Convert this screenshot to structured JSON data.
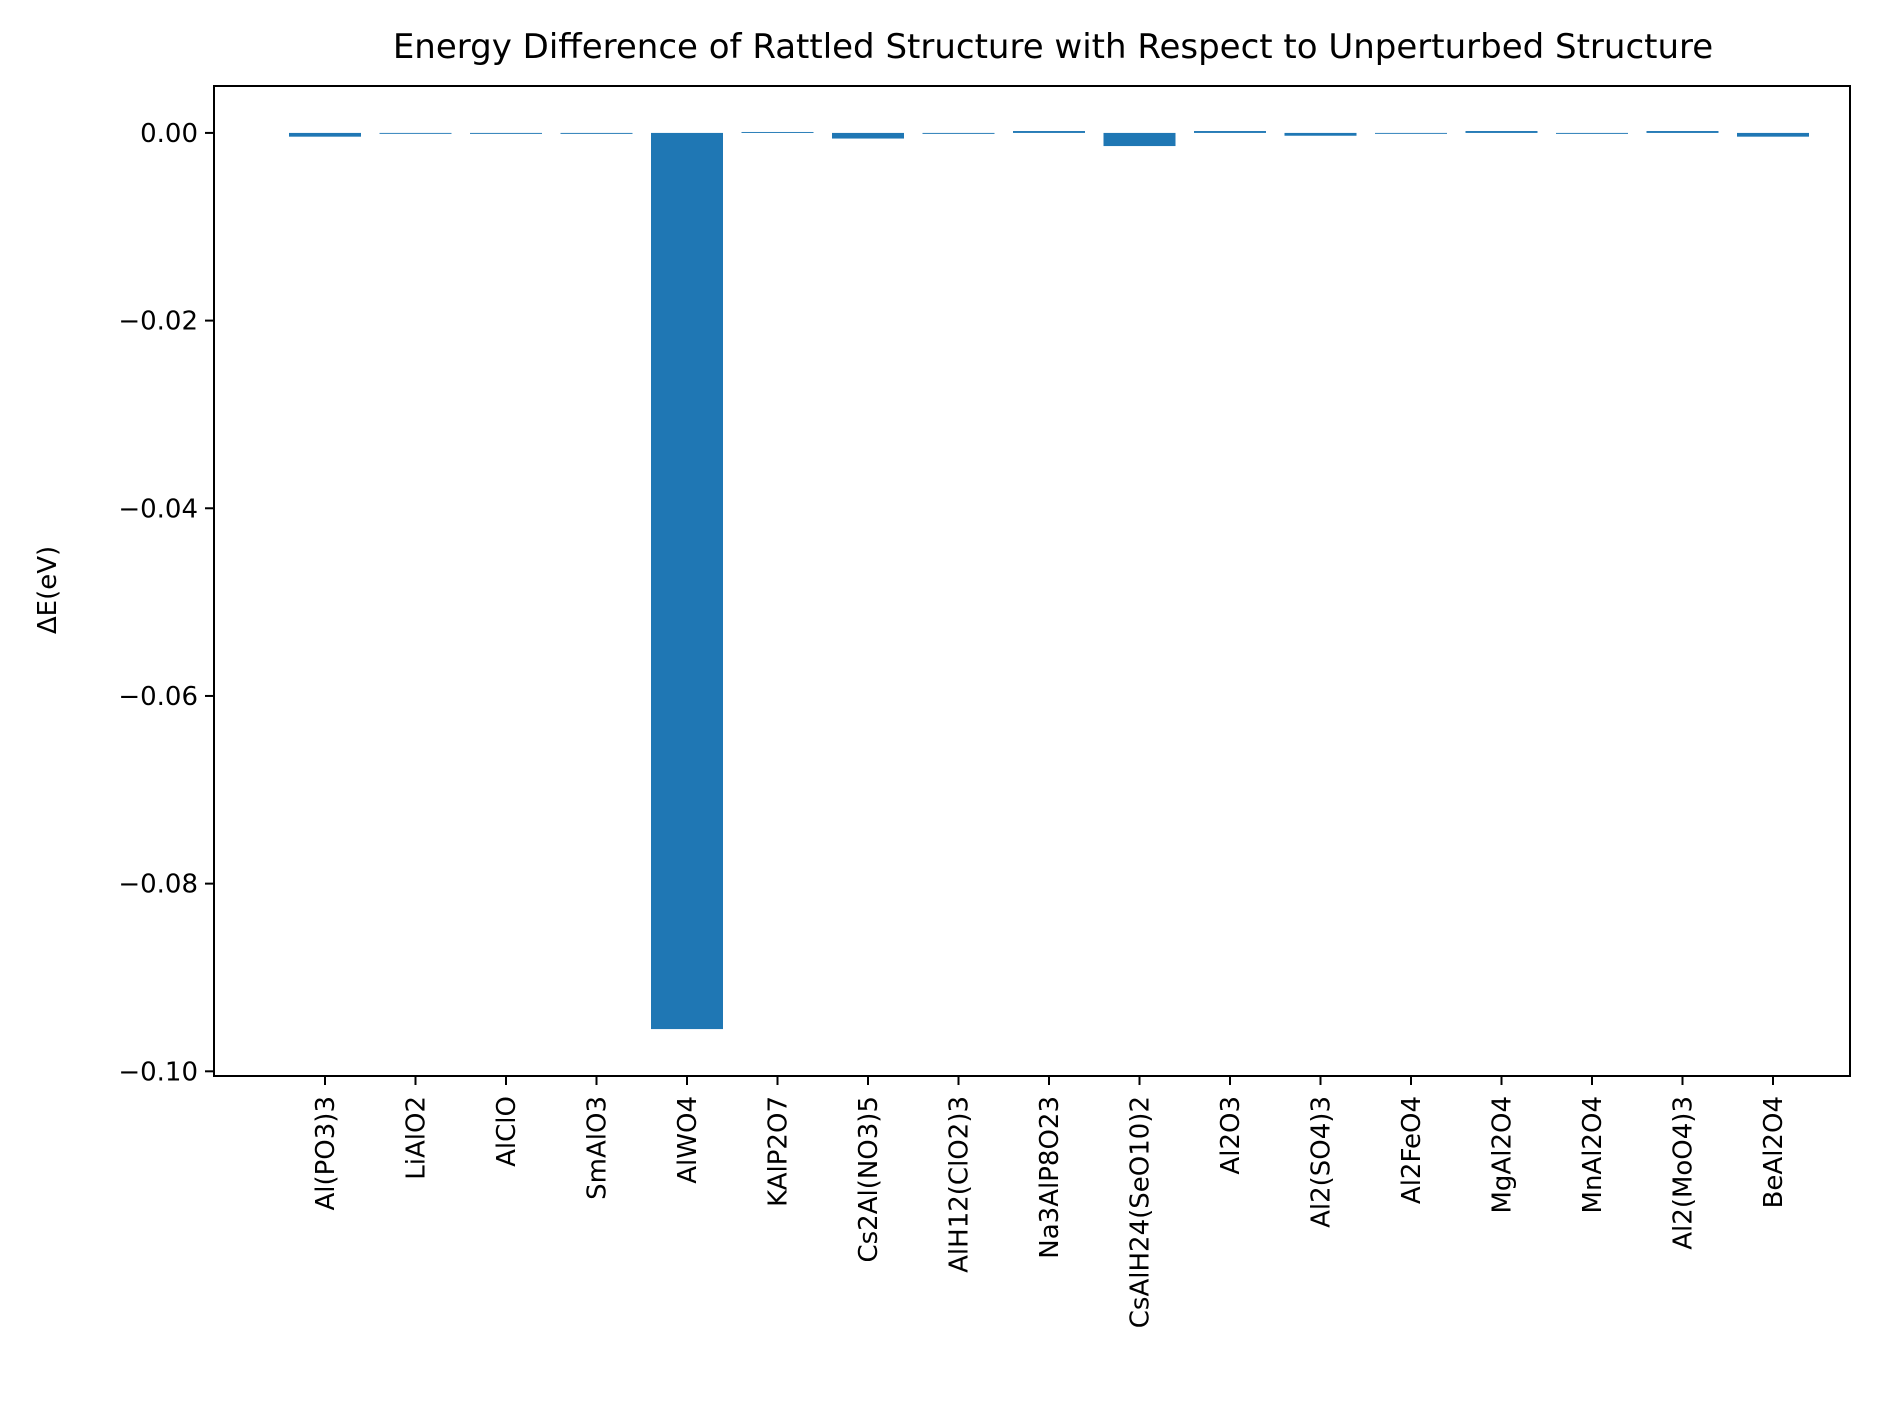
{
  "chart_data": {
    "type": "bar",
    "title": "Energy Difference of Rattled Structure with Respect to Unperturbed Structure",
    "xlabel": "",
    "ylabel": "ΔE(eV)",
    "categories": [
      "Al(PO3)3",
      "LiAlO2",
      "AlClO",
      "SmAlO3",
      "AlWO4",
      "KAlP2O7",
      "Cs2Al(NO3)5",
      "AlH12(ClO2)3",
      "Na3AlP8O23",
      "CsAlH24(SeO10)2",
      "Al2O3",
      "Al2(SO4)3",
      "Al2FeO4",
      "MgAl2O4",
      "MnAl2O4",
      "Al2(MoO4)3",
      "BeAl2O4"
    ],
    "values": [
      -0.0004,
      0.0,
      -0.0001,
      -0.0001,
      -0.0955,
      0.0001,
      -0.0006,
      -0.0001,
      0.0002,
      -0.0014,
      0.0002,
      -0.0003,
      0.0,
      0.0002,
      -0.0001,
      0.0002,
      -0.0004
    ],
    "ylim": [
      -0.1005,
      0.005
    ],
    "yticks": [
      0.0,
      -0.02,
      -0.04,
      -0.06,
      -0.08,
      -0.1
    ],
    "ytick_labels": [
      "0.00",
      "−0.02",
      "−0.04",
      "−0.06",
      "−0.08",
      "−0.10"
    ],
    "bar_color": "#1f77b4",
    "grid": false,
    "legend": "none"
  }
}
